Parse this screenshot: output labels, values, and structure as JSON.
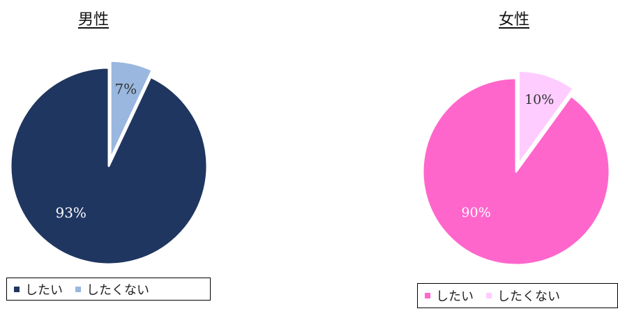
{
  "chart_data": [
    {
      "type": "pie",
      "title": "男性",
      "categories": [
        "したい",
        "したくない"
      ],
      "values": [
        93,
        7
      ],
      "data_labels": [
        "93%",
        "7%"
      ],
      "colors": [
        "#1f3660",
        "#99b7df"
      ],
      "label_colors": [
        "#ffffff",
        "#333333"
      ],
      "legend": "bottom",
      "exploded": "したくない"
    },
    {
      "type": "pie",
      "title": "女性",
      "categories": [
        "したい",
        "したくない"
      ],
      "values": [
        90,
        10
      ],
      "data_labels": [
        "90%",
        "10%"
      ],
      "colors": [
        "#ff66cc",
        "#ffccff"
      ],
      "label_colors": [
        "#ffffff",
        "#333333"
      ],
      "legend": "bottom",
      "exploded": "したくない"
    }
  ]
}
